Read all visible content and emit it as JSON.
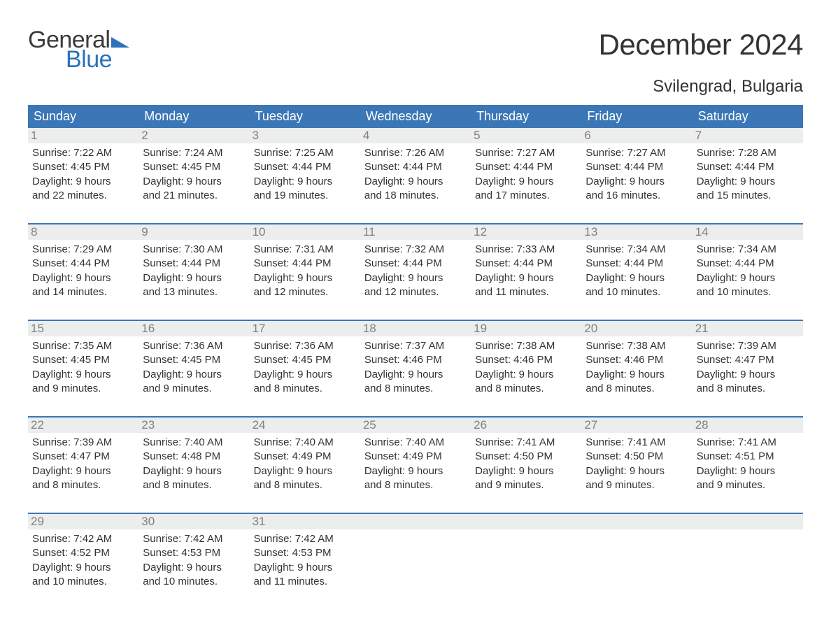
{
  "logo": {
    "text_general": "General",
    "text_blue": "Blue",
    "flag_color": "#2b72b9",
    "text_color_general": "#3a3a3a",
    "text_color_blue": "#2b72b9"
  },
  "header": {
    "month_title": "December 2024",
    "location": "Svilengrad, Bulgaria",
    "title_fontsize": 42,
    "location_fontsize": 24
  },
  "calendar": {
    "type": "table",
    "columns": [
      "Sunday",
      "Monday",
      "Tuesday",
      "Wednesday",
      "Thursday",
      "Friday",
      "Saturday"
    ],
    "header_bg": "#3b77b6",
    "header_text_color": "#ffffff",
    "header_fontsize": 18,
    "week_divider_color": "#3b77b6",
    "daynum_bg": "#eceded",
    "daynum_color": "#808080",
    "daynum_fontsize": 17,
    "body_fontsize": 15,
    "body_text_color": "#333333",
    "background_color": "#ffffff",
    "weeks": [
      [
        {
          "day": "1",
          "sunrise": "Sunrise: 7:22 AM",
          "sunset": "Sunset: 4:45 PM",
          "daylight1": "Daylight: 9 hours",
          "daylight2": "and 22 minutes."
        },
        {
          "day": "2",
          "sunrise": "Sunrise: 7:24 AM",
          "sunset": "Sunset: 4:45 PM",
          "daylight1": "Daylight: 9 hours",
          "daylight2": "and 21 minutes."
        },
        {
          "day": "3",
          "sunrise": "Sunrise: 7:25 AM",
          "sunset": "Sunset: 4:44 PM",
          "daylight1": "Daylight: 9 hours",
          "daylight2": "and 19 minutes."
        },
        {
          "day": "4",
          "sunrise": "Sunrise: 7:26 AM",
          "sunset": "Sunset: 4:44 PM",
          "daylight1": "Daylight: 9 hours",
          "daylight2": "and 18 minutes."
        },
        {
          "day": "5",
          "sunrise": "Sunrise: 7:27 AM",
          "sunset": "Sunset: 4:44 PM",
          "daylight1": "Daylight: 9 hours",
          "daylight2": "and 17 minutes."
        },
        {
          "day": "6",
          "sunrise": "Sunrise: 7:27 AM",
          "sunset": "Sunset: 4:44 PM",
          "daylight1": "Daylight: 9 hours",
          "daylight2": "and 16 minutes."
        },
        {
          "day": "7",
          "sunrise": "Sunrise: 7:28 AM",
          "sunset": "Sunset: 4:44 PM",
          "daylight1": "Daylight: 9 hours",
          "daylight2": "and 15 minutes."
        }
      ],
      [
        {
          "day": "8",
          "sunrise": "Sunrise: 7:29 AM",
          "sunset": "Sunset: 4:44 PM",
          "daylight1": "Daylight: 9 hours",
          "daylight2": "and 14 minutes."
        },
        {
          "day": "9",
          "sunrise": "Sunrise: 7:30 AM",
          "sunset": "Sunset: 4:44 PM",
          "daylight1": "Daylight: 9 hours",
          "daylight2": "and 13 minutes."
        },
        {
          "day": "10",
          "sunrise": "Sunrise: 7:31 AM",
          "sunset": "Sunset: 4:44 PM",
          "daylight1": "Daylight: 9 hours",
          "daylight2": "and 12 minutes."
        },
        {
          "day": "11",
          "sunrise": "Sunrise: 7:32 AM",
          "sunset": "Sunset: 4:44 PM",
          "daylight1": "Daylight: 9 hours",
          "daylight2": "and 12 minutes."
        },
        {
          "day": "12",
          "sunrise": "Sunrise: 7:33 AM",
          "sunset": "Sunset: 4:44 PM",
          "daylight1": "Daylight: 9 hours",
          "daylight2": "and 11 minutes."
        },
        {
          "day": "13",
          "sunrise": "Sunrise: 7:34 AM",
          "sunset": "Sunset: 4:44 PM",
          "daylight1": "Daylight: 9 hours",
          "daylight2": "and 10 minutes."
        },
        {
          "day": "14",
          "sunrise": "Sunrise: 7:34 AM",
          "sunset": "Sunset: 4:44 PM",
          "daylight1": "Daylight: 9 hours",
          "daylight2": "and 10 minutes."
        }
      ],
      [
        {
          "day": "15",
          "sunrise": "Sunrise: 7:35 AM",
          "sunset": "Sunset: 4:45 PM",
          "daylight1": "Daylight: 9 hours",
          "daylight2": "and 9 minutes."
        },
        {
          "day": "16",
          "sunrise": "Sunrise: 7:36 AM",
          "sunset": "Sunset: 4:45 PM",
          "daylight1": "Daylight: 9 hours",
          "daylight2": "and 9 minutes."
        },
        {
          "day": "17",
          "sunrise": "Sunrise: 7:36 AM",
          "sunset": "Sunset: 4:45 PM",
          "daylight1": "Daylight: 9 hours",
          "daylight2": "and 8 minutes."
        },
        {
          "day": "18",
          "sunrise": "Sunrise: 7:37 AM",
          "sunset": "Sunset: 4:46 PM",
          "daylight1": "Daylight: 9 hours",
          "daylight2": "and 8 minutes."
        },
        {
          "day": "19",
          "sunrise": "Sunrise: 7:38 AM",
          "sunset": "Sunset: 4:46 PM",
          "daylight1": "Daylight: 9 hours",
          "daylight2": "and 8 minutes."
        },
        {
          "day": "20",
          "sunrise": "Sunrise: 7:38 AM",
          "sunset": "Sunset: 4:46 PM",
          "daylight1": "Daylight: 9 hours",
          "daylight2": "and 8 minutes."
        },
        {
          "day": "21",
          "sunrise": "Sunrise: 7:39 AM",
          "sunset": "Sunset: 4:47 PM",
          "daylight1": "Daylight: 9 hours",
          "daylight2": "and 8 minutes."
        }
      ],
      [
        {
          "day": "22",
          "sunrise": "Sunrise: 7:39 AM",
          "sunset": "Sunset: 4:47 PM",
          "daylight1": "Daylight: 9 hours",
          "daylight2": "and 8 minutes."
        },
        {
          "day": "23",
          "sunrise": "Sunrise: 7:40 AM",
          "sunset": "Sunset: 4:48 PM",
          "daylight1": "Daylight: 9 hours",
          "daylight2": "and 8 minutes."
        },
        {
          "day": "24",
          "sunrise": "Sunrise: 7:40 AM",
          "sunset": "Sunset: 4:49 PM",
          "daylight1": "Daylight: 9 hours",
          "daylight2": "and 8 minutes."
        },
        {
          "day": "25",
          "sunrise": "Sunrise: 7:40 AM",
          "sunset": "Sunset: 4:49 PM",
          "daylight1": "Daylight: 9 hours",
          "daylight2": "and 8 minutes."
        },
        {
          "day": "26",
          "sunrise": "Sunrise: 7:41 AM",
          "sunset": "Sunset: 4:50 PM",
          "daylight1": "Daylight: 9 hours",
          "daylight2": "and 9 minutes."
        },
        {
          "day": "27",
          "sunrise": "Sunrise: 7:41 AM",
          "sunset": "Sunset: 4:50 PM",
          "daylight1": "Daylight: 9 hours",
          "daylight2": "and 9 minutes."
        },
        {
          "day": "28",
          "sunrise": "Sunrise: 7:41 AM",
          "sunset": "Sunset: 4:51 PM",
          "daylight1": "Daylight: 9 hours",
          "daylight2": "and 9 minutes."
        }
      ],
      [
        {
          "day": "29",
          "sunrise": "Sunrise: 7:42 AM",
          "sunset": "Sunset: 4:52 PM",
          "daylight1": "Daylight: 9 hours",
          "daylight2": "and 10 minutes."
        },
        {
          "day": "30",
          "sunrise": "Sunrise: 7:42 AM",
          "sunset": "Sunset: 4:53 PM",
          "daylight1": "Daylight: 9 hours",
          "daylight2": "and 10 minutes."
        },
        {
          "day": "31",
          "sunrise": "Sunrise: 7:42 AM",
          "sunset": "Sunset: 4:53 PM",
          "daylight1": "Daylight: 9 hours",
          "daylight2": "and 11 minutes."
        },
        {
          "day": "",
          "empty": true
        },
        {
          "day": "",
          "empty": true
        },
        {
          "day": "",
          "empty": true
        },
        {
          "day": "",
          "empty": true
        }
      ]
    ]
  }
}
